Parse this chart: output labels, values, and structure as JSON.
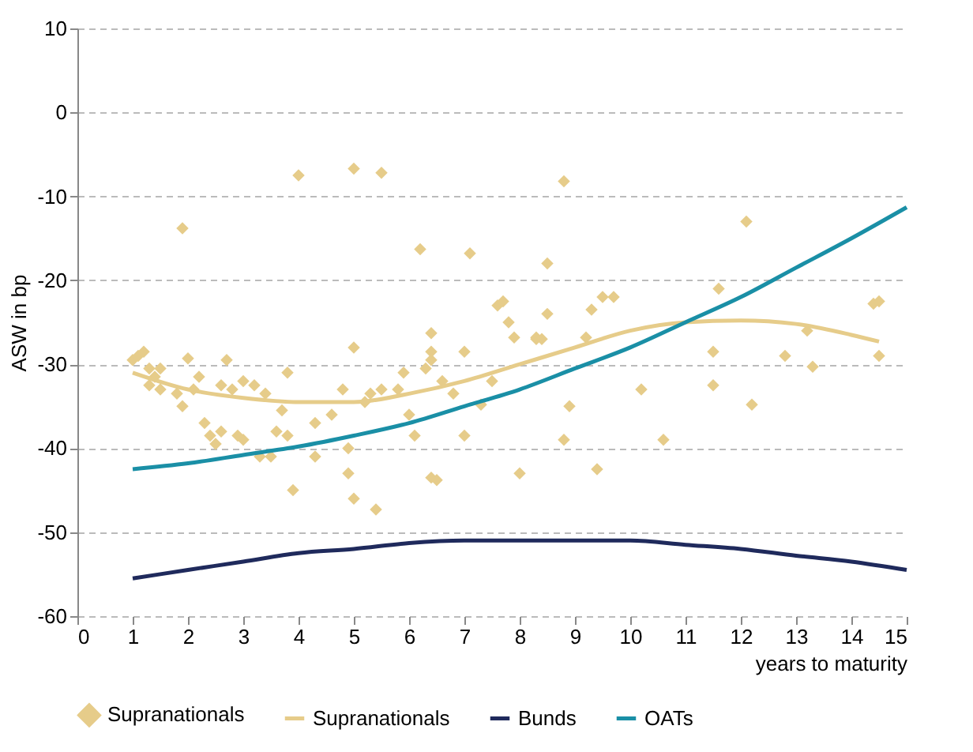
{
  "chart_data": {
    "type": "scatter",
    "xlabel": "years to maturity",
    "ylabel": "ASW in bp",
    "xlim": [
      0,
      15
    ],
    "xticks": [
      0,
      1,
      2,
      3,
      4,
      5,
      6,
      7,
      8,
      9,
      10,
      11,
      12,
      13,
      14,
      15
    ],
    "ylim": [
      -60,
      10
    ],
    "yticks": [
      -60,
      -50,
      -40,
      -30,
      -20,
      -10,
      0,
      10
    ],
    "grid": "y",
    "legend": "bottom",
    "series": [
      {
        "name": "Supranationals",
        "type": "scatter",
        "marker": "diamond",
        "color": "#e6cc8a",
        "x": [
          1.0,
          1.1,
          1.2,
          1.3,
          1.4,
          1.3,
          1.5,
          1.5,
          1.9,
          1.8,
          1.9,
          2.0,
          2.1,
          2.2,
          2.3,
          2.4,
          2.5,
          2.6,
          2.7,
          2.6,
          2.8,
          2.9,
          3.0,
          3.0,
          3.2,
          3.3,
          3.4,
          3.5,
          3.6,
          3.7,
          3.8,
          3.8,
          3.9,
          4.0,
          4.3,
          4.3,
          4.6,
          4.8,
          4.9,
          4.9,
          5.0,
          5.0,
          5.0,
          5.2,
          5.3,
          5.4,
          5.5,
          5.5,
          5.8,
          5.9,
          6.0,
          6.1,
          6.2,
          6.3,
          6.4,
          6.4,
          6.4,
          6.4,
          6.5,
          6.6,
          6.8,
          7.0,
          7.0,
          7.1,
          7.3,
          7.5,
          7.6,
          7.7,
          7.8,
          7.9,
          8.0,
          8.3,
          8.3,
          8.4,
          8.5,
          8.5,
          8.8,
          8.8,
          8.9,
          9.2,
          9.3,
          9.4,
          9.5,
          9.7,
          10.2,
          10.6,
          11.5,
          11.5,
          11.6,
          12.1,
          12.2,
          12.8,
          13.2,
          13.3,
          14.4,
          14.5,
          14.5
        ],
        "values": [
          -29.5,
          -29,
          -28.5,
          -30.5,
          -31.5,
          -32.5,
          -33,
          -30.5,
          -13.8,
          -33.5,
          -35,
          -29.3,
          -33,
          -31.5,
          -37,
          -38.5,
          -39.5,
          -38,
          -29.5,
          -32.5,
          -33,
          -38.5,
          -32,
          -39,
          -32.5,
          -41,
          -33.5,
          -41,
          -38,
          -35.5,
          -31,
          -38.5,
          -45,
          -7.5,
          -37,
          -41,
          -36,
          -33,
          -40,
          -43,
          -46,
          -28,
          -6.7,
          -34.5,
          -33.5,
          -47.3,
          -7.2,
          -33,
          -33,
          -31,
          -36,
          -38.5,
          -16.3,
          -30.5,
          -29.5,
          -26.3,
          -28.5,
          -43.5,
          -43.8,
          -32,
          -33.5,
          -28.5,
          -38.5,
          -16.8,
          -34.8,
          -32,
          -23,
          -22.5,
          -25,
          -26.8,
          -43,
          -26.8,
          -27,
          -27,
          -24,
          -18,
          -39,
          -8.2,
          -35,
          -26.8,
          -23.5,
          -42.5,
          -22,
          -22,
          -33,
          -39,
          -28.5,
          -32.5,
          -21,
          -13,
          -34.8,
          -29,
          -26,
          -30.3,
          -22.8,
          -22.5,
          -29
        ]
      },
      {
        "name": "Supranationals",
        "type": "line",
        "color": "#e6cc8a",
        "x": [
          1,
          2,
          3,
          4,
          5,
          6,
          7,
          8,
          9,
          10,
          11,
          12,
          13,
          14,
          14.5
        ],
        "values": [
          -31,
          -33,
          -34,
          -34.5,
          -34.5,
          -33.5,
          -32,
          -30,
          -28,
          -26,
          -25,
          -24.8,
          -25.2,
          -26.5,
          -27.3
        ]
      },
      {
        "name": "Bunds",
        "type": "line",
        "color": "#1f2a5c",
        "x": [
          1,
          2,
          3,
          4,
          5,
          6,
          7,
          8,
          9,
          10,
          11,
          12,
          13,
          14,
          15
        ],
        "values": [
          -55.5,
          -54.5,
          -53.5,
          -52.5,
          -52,
          -51.3,
          -51,
          -51,
          -51,
          -51,
          -51.5,
          -52,
          -52.8,
          -53.5,
          -54.5
        ]
      },
      {
        "name": "OATs",
        "type": "line",
        "color": "#1a8fa6",
        "x": [
          1,
          2,
          3,
          4,
          5,
          6,
          7,
          8,
          9,
          10,
          11,
          12,
          13,
          14,
          15
        ],
        "values": [
          -42.5,
          -41.8,
          -40.8,
          -39.8,
          -38.5,
          -37,
          -35,
          -33,
          -30.5,
          -28,
          -25,
          -22,
          -18.5,
          -15,
          -11.3
        ]
      }
    ]
  }
}
